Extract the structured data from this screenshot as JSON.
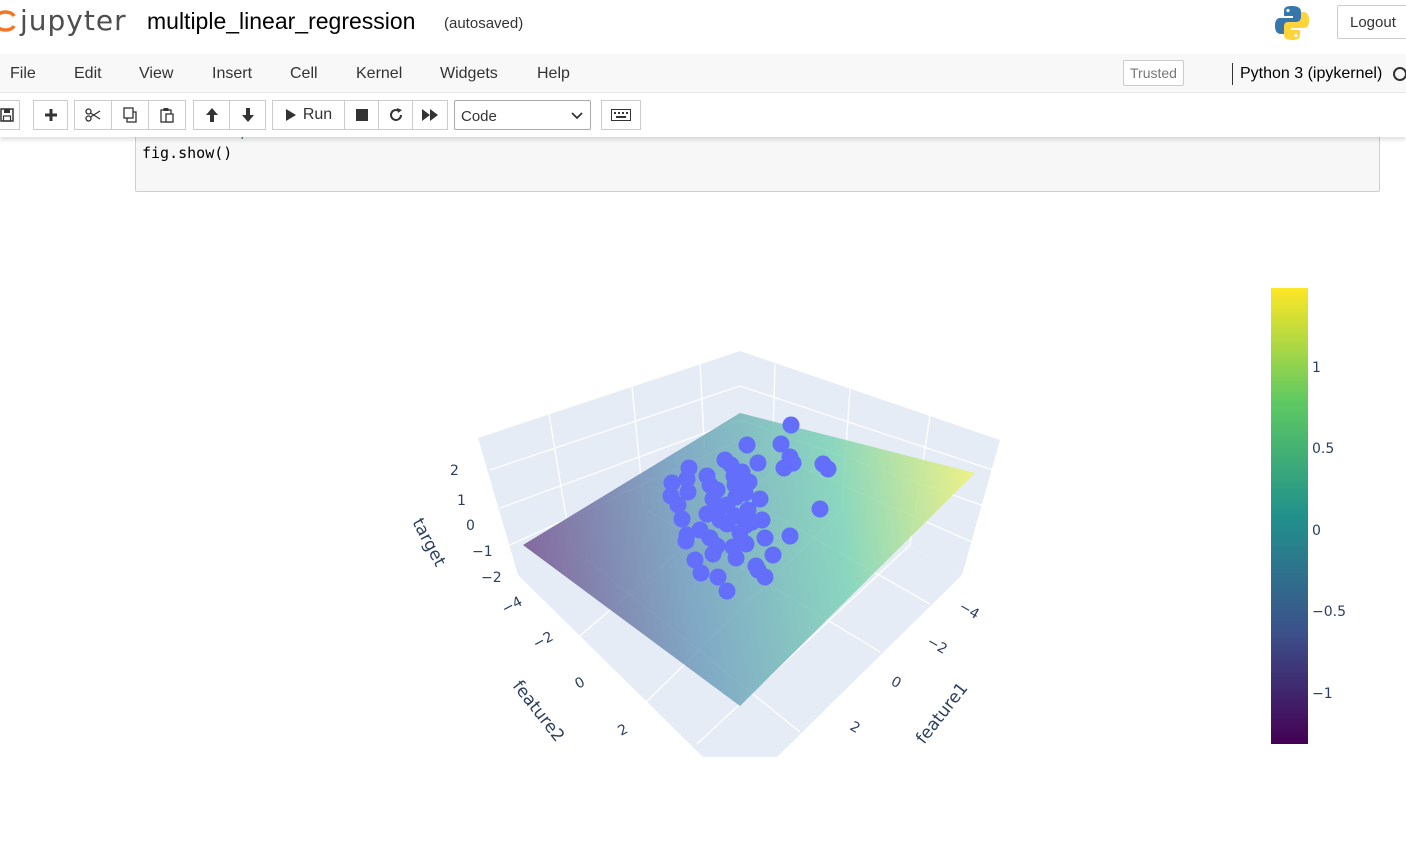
{
  "header": {
    "logo_text": "jupyter",
    "notebook_title": "multiple_linear_regression",
    "autosave_status": "(autosaved)",
    "logout_label": "Logout"
  },
  "menu": {
    "items": [
      "File",
      "Edit",
      "View",
      "Insert",
      "Cell",
      "Kernel",
      "Widgets",
      "Help"
    ],
    "trusted_label": "Trusted",
    "kernel_name": "Python 3 (ipykernel)"
  },
  "toolbar": {
    "run_label": "Run",
    "cell_type": "Code"
  },
  "cell": {
    "comment_line": "# Show the plot",
    "code_line": "fig.show()"
  },
  "chart_data": {
    "type": "scatter",
    "subtype": "3d-scatter-with-regression-plane",
    "axes": {
      "x": {
        "label": "feature1",
        "ticks": [
          "−4",
          "−2",
          "0",
          "2"
        ]
      },
      "y": {
        "label": "feature2",
        "ticks": [
          "−4",
          "−2",
          "0",
          "2"
        ]
      },
      "z": {
        "label": "target",
        "ticks": [
          "2",
          "1",
          "0",
          "−1",
          "−2"
        ]
      }
    },
    "marker_color": "#636efa",
    "surface_colorscale": "viridis",
    "colorbar": {
      "ticks": [
        "1",
        "0.5",
        "0",
        "−0.5",
        "−1"
      ],
      "colors": [
        "#fde725",
        "#5ec962",
        "#21918c",
        "#3b528b",
        "#440154"
      ]
    }
  }
}
